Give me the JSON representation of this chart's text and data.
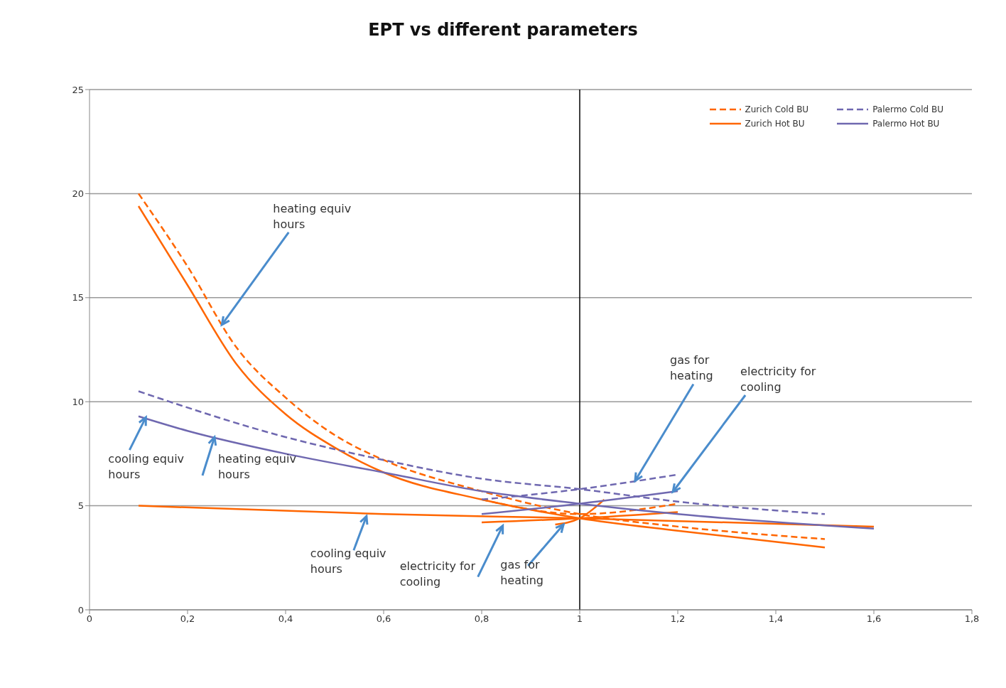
{
  "chart_data": {
    "type": "line",
    "title": "EPT vs different parameters",
    "xlim": [
      0,
      1.8
    ],
    "xticks": [
      0,
      {
        "value": 0.2,
        "label": "0,2"
      },
      {
        "value": 0.4,
        "label": "0,4"
      },
      {
        "value": 0.6,
        "label": "0,6"
      },
      {
        "value": 0.8,
        "label": "0,8"
      },
      1,
      {
        "value": 1.2,
        "label": "1,2"
      },
      {
        "value": 1.4,
        "label": "1,4"
      },
      {
        "value": 1.6,
        "label": "1,6"
      },
      {
        "value": 1.8,
        "label": "1,8"
      }
    ],
    "ylim": [
      0,
      25
    ],
    "yticks": [
      0,
      5,
      10,
      15,
      20,
      25
    ],
    "grid": "y",
    "legend": "top right",
    "marker": "none",
    "series": [
      {
        "name": "Zurich Cold BU",
        "color": "#ff6600",
        "line_style": "dashed",
        "x": [
          0.1,
          0.2,
          0.3,
          0.4,
          0.5,
          0.6,
          0.8,
          1,
          1.2,
          1.5
        ],
        "values": [
          20.0,
          16.5,
          12.6,
          10.2,
          8.4,
          7.2,
          5.7,
          4.6,
          4.0,
          3.4
        ]
      },
      {
        "color": "#ff6600",
        "line_style": "dashed",
        "x": [
          0.8,
          1,
          1.2
        ],
        "values": [
          5.3,
          4.6,
          5.1
        ]
      },
      {
        "name": "Zurich Hot BU",
        "color": "#ff6600",
        "line_style": "solid",
        "x": [
          0.1,
          0.2,
          0.3,
          0.4,
          0.5,
          0.6,
          0.8,
          1,
          1.2,
          1.5
        ],
        "values": [
          19.4,
          15.6,
          11.8,
          9.4,
          7.8,
          6.6,
          5.3,
          4.4,
          3.8,
          3.0
        ]
      },
      {
        "color": "#ff6600",
        "line_style": "solid",
        "x": [
          0.1,
          0.6,
          1,
          1.6
        ],
        "values": [
          5.0,
          4.6,
          4.4,
          4.0
        ]
      },
      {
        "color": "#ff6600",
        "line_style": "solid",
        "x": [
          0.8,
          1,
          1.2
        ],
        "values": [
          4.2,
          4.4,
          4.7
        ]
      },
      {
        "color": "#ff6600",
        "line_style": "solid",
        "x": [
          0.95,
          1,
          1.05
        ],
        "values": [
          4.1,
          4.4,
          5.3
        ]
      },
      {
        "name": "Palermo Cold BU",
        "color": "#6f68b0",
        "line_style": "dashed",
        "x": [
          0.1,
          0.4,
          0.6,
          0.8,
          1,
          1.2,
          1.5
        ],
        "values": [
          10.5,
          8.3,
          7.2,
          6.3,
          5.8,
          5.2,
          4.6
        ]
      },
      {
        "color": "#6f68b0",
        "line_style": "dashed",
        "x": [
          0.8,
          1,
          1.2
        ],
        "values": [
          5.3,
          5.8,
          6.5
        ]
      },
      {
        "name": "Palermo Hot BU",
        "color": "#6f68b0",
        "line_style": "solid",
        "x": [
          0.1,
          0.2,
          0.4,
          0.6,
          0.8,
          1,
          1.2,
          1.6
        ],
        "values": [
          9.3,
          8.6,
          7.5,
          6.6,
          5.7,
          5.1,
          4.6,
          3.9
        ]
      },
      {
        "color": "#6f68b0",
        "line_style": "solid",
        "x": [
          0.8,
          1,
          1.2
        ],
        "values": [
          4.6,
          5.1,
          5.7
        ]
      }
    ],
    "ref_lines": [
      {
        "axis": "x",
        "value": 1,
        "color": "#000000"
      }
    ],
    "annotations": [
      {
        "text": "heating equiv hours",
        "x": 0.27,
        "y": 13.7
      },
      {
        "text": "cooling equiv hours",
        "x": 0.115,
        "y": 9.25
      },
      {
        "text": "heating equiv hours",
        "x": 0.255,
        "y": 8.3
      },
      {
        "text": "cooling equiv hours",
        "x": 0.565,
        "y": 4.5
      },
      {
        "text": "electricity for cooling",
        "x": 0.843,
        "y": 4.04
      },
      {
        "text": "gas for heating",
        "x": 0.967,
        "y": 4.1
      },
      {
        "text": "gas for heating",
        "x": 1.113,
        "y": 6.2
      },
      {
        "text": "electricity for cooling",
        "x": 1.19,
        "y": 5.67
      }
    ]
  }
}
